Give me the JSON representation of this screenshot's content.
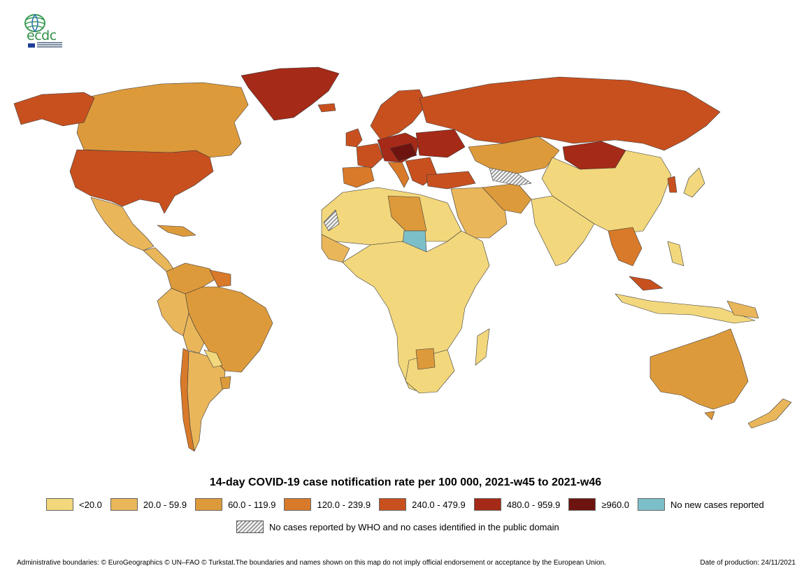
{
  "logo": {
    "text": "ecdc"
  },
  "map": {
    "title": "14-day COVID-19 case notification rate per 100 000, 2021-w45 to 2021-w46",
    "colors": {
      "lt20": "#f2d77c",
      "c20_60": "#e9b65a",
      "c60_120": "#dd9a3b",
      "c120_240": "#d87a2a",
      "c240_480": "#c8501f",
      "c480_960": "#a52a17",
      "ge960": "#6e1410",
      "no_new": "#7dbfc9",
      "hatch": "#9a9a9a"
    },
    "legend": [
      {
        "label": "<20.0",
        "color": "#f2d77c"
      },
      {
        "label": "20.0 - 59.9",
        "color": "#e9b65a"
      },
      {
        "label": "60.0 - 119.9",
        "color": "#dd9a3b"
      },
      {
        "label": "120.0 - 239.9",
        "color": "#d87a2a"
      },
      {
        "label": "240.0 - 479.9",
        "color": "#c8501f"
      },
      {
        "label": "480.0 - 959.9",
        "color": "#a52a17"
      },
      {
        "label": "≥960.0",
        "color": "#6e1410"
      },
      {
        "label": "No new cases reported",
        "color": "#7dbfc9"
      }
    ],
    "no_data_label": "No cases reported by WHO and no cases identified in the public domain"
  },
  "footer": {
    "disclaimer": "Administrative boundaries: © EuroGeographics © UN–FAO © Turkstat.The boundaries and names shown on this map do not imply official endorsement or acceptance by the European Union.",
    "production_date": "Date of production: 24/11/2021"
  }
}
